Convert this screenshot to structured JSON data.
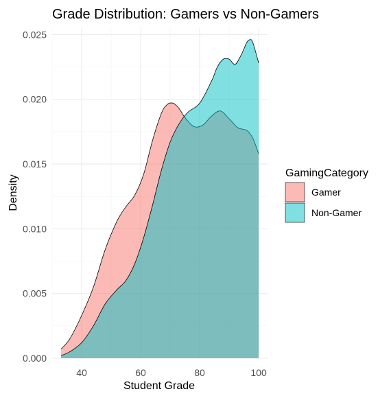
{
  "chart_data": {
    "type": "area",
    "title": "Grade Distribution: Gamers vs Non-Gamers",
    "xlabel": "Student Grade",
    "ylabel": "Density",
    "xlim": [
      30,
      103
    ],
    "ylim": [
      0,
      0.0255
    ],
    "x_ticks": [
      40,
      60,
      80,
      100
    ],
    "x_tick_labels": [
      "40",
      "60",
      "80",
      "100"
    ],
    "y_ticks": [
      0,
      0.005,
      0.01,
      0.015,
      0.02,
      0.025
    ],
    "y_tick_labels": [
      "0.000",
      "0.005",
      "0.010",
      "0.015",
      "0.020",
      "0.025"
    ],
    "grid": true,
    "legend": {
      "title": "GamingCategory",
      "position": "right"
    },
    "series": [
      {
        "name": "Gamer",
        "color": "#F8766D",
        "x": [
          33,
          36,
          40,
          44,
          48,
          52,
          55,
          58,
          61,
          64,
          67,
          69,
          71,
          73,
          75,
          78,
          81,
          84,
          87,
          90,
          93,
          96,
          98,
          100
        ],
        "y": [
          0.0007,
          0.0015,
          0.0033,
          0.0055,
          0.0084,
          0.0106,
          0.0117,
          0.0126,
          0.0142,
          0.0168,
          0.0189,
          0.0196,
          0.0197,
          0.0193,
          0.0186,
          0.0179,
          0.018,
          0.0187,
          0.0191,
          0.0185,
          0.0178,
          0.0176,
          0.017,
          0.0158
        ]
      },
      {
        "name": "Non-Gamer",
        "color": "#00BFC4",
        "x": [
          33,
          36,
          40,
          44,
          48,
          52,
          55,
          58,
          61,
          64,
          67,
          70,
          73,
          76,
          80,
          84,
          86,
          88,
          90,
          92,
          94,
          96,
          97,
          98,
          100
        ],
        "y": [
          0.0002,
          0.0005,
          0.0012,
          0.0025,
          0.0042,
          0.0053,
          0.006,
          0.0073,
          0.0093,
          0.0118,
          0.0145,
          0.0167,
          0.0181,
          0.019,
          0.0197,
          0.0214,
          0.0225,
          0.0231,
          0.0231,
          0.0227,
          0.0234,
          0.0244,
          0.0246,
          0.0244,
          0.0228
        ]
      }
    ]
  }
}
